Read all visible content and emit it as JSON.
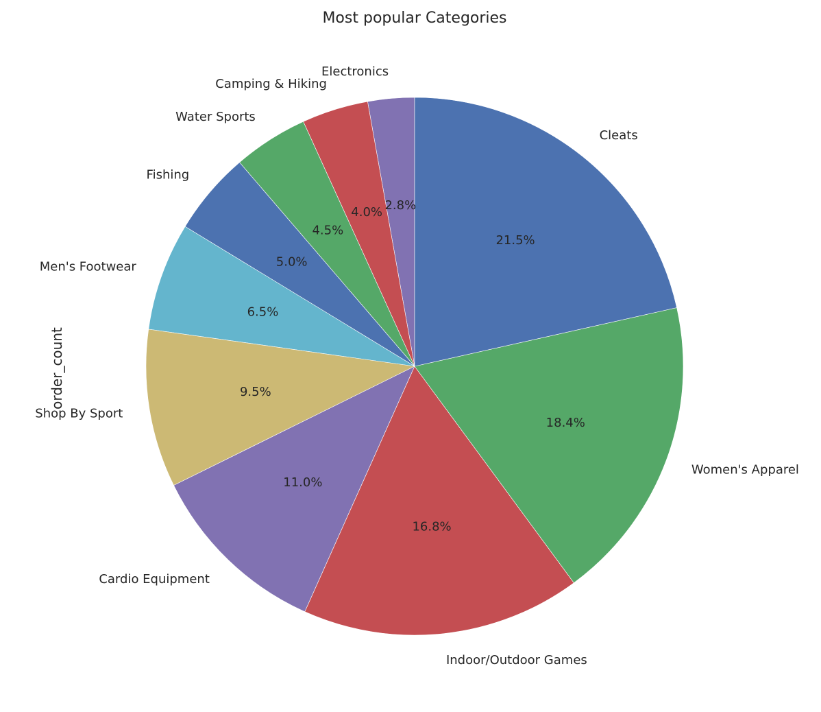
{
  "chart_data": {
    "type": "pie",
    "title": "Most popular Categories",
    "ylabel": "order_count",
    "start_angle_deg": 90,
    "direction": "counterclockwise",
    "slices": [
      {
        "label": "Electronics",
        "value": 2.8,
        "pct_label": "2.8%",
        "color": "#8172b2"
      },
      {
        "label": "Camping & Hiking",
        "value": 4.0,
        "pct_label": "4.0%",
        "color": "#c44e52"
      },
      {
        "label": "Water Sports",
        "value": 4.5,
        "pct_label": "4.5%",
        "color": "#55a868"
      },
      {
        "label": "Fishing",
        "value": 5.0,
        "pct_label": "5.0%",
        "color": "#4c72b0"
      },
      {
        "label": "Men's Footwear",
        "value": 6.5,
        "pct_label": "6.5%",
        "color": "#64b5cd"
      },
      {
        "label": "Shop By Sport",
        "value": 9.5,
        "pct_label": "9.5%",
        "color": "#ccb974"
      },
      {
        "label": "Cardio Equipment",
        "value": 11.0,
        "pct_label": "11.0%",
        "color": "#8172b2"
      },
      {
        "label": "Indoor/Outdoor Games",
        "value": 16.8,
        "pct_label": "16.8%",
        "color": "#c44e52"
      },
      {
        "label": "Women's Apparel",
        "value": 18.4,
        "pct_label": "18.4%",
        "color": "#55a868"
      },
      {
        "label": "Cleats",
        "value": 21.5,
        "pct_label": "21.5%",
        "color": "#4c72b0"
      }
    ]
  }
}
